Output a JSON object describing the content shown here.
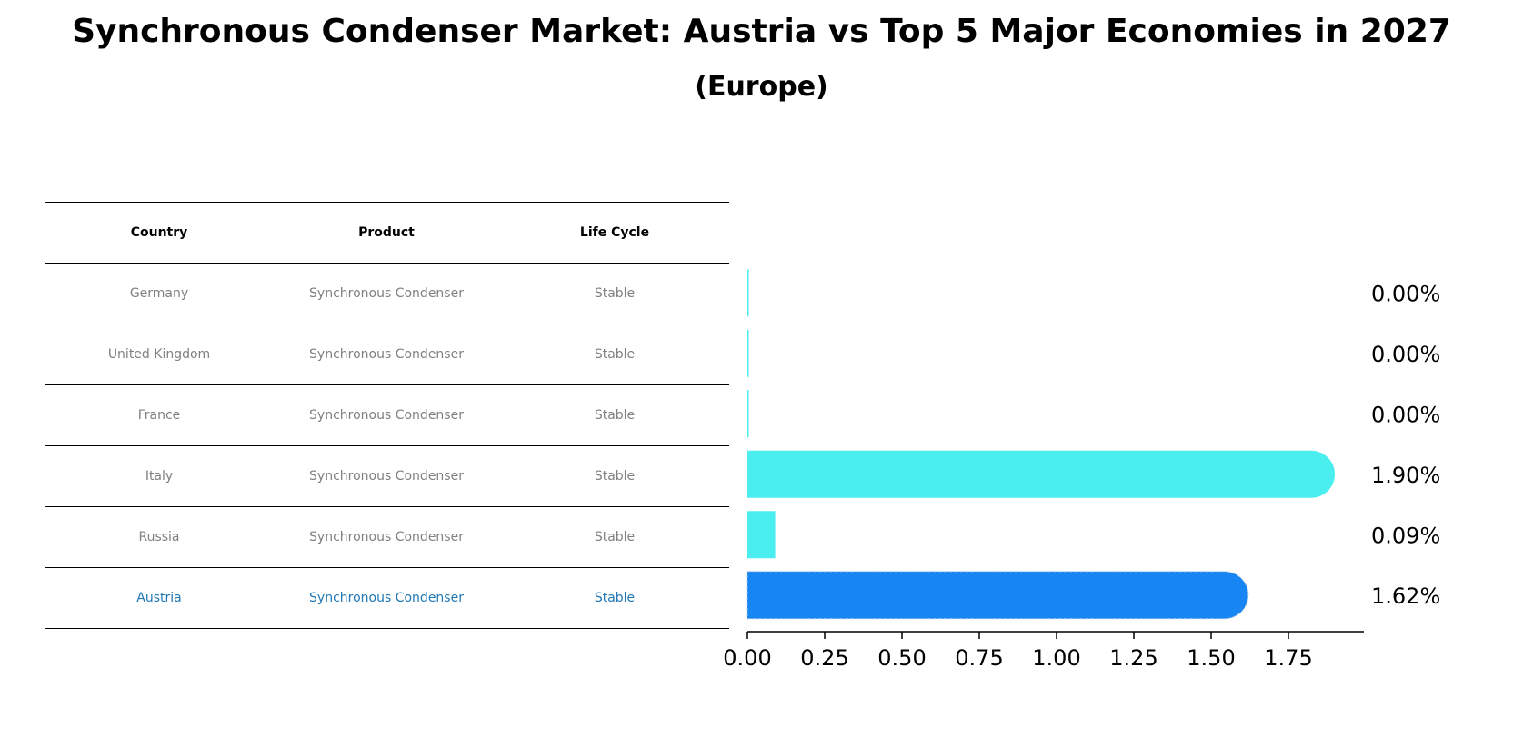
{
  "title": "Synchronous Condenser Market: Austria vs Top 5 Major Economies in 2027",
  "subtitle": "(Europe)",
  "table": {
    "headers": [
      "Country",
      "Product",
      "Life Cycle"
    ],
    "rows": [
      [
        "Germany",
        "Synchronous Condenser",
        "Stable"
      ],
      [
        "United Kingdom",
        "Synchronous Condenser",
        "Stable"
      ],
      [
        "France",
        "Synchronous Condenser",
        "Stable"
      ],
      [
        "Italy",
        "Synchronous Condenser",
        "Stable"
      ],
      [
        "Russia",
        "Synchronous Condenser",
        "Stable"
      ],
      [
        "Austria",
        "Synchronous Condenser",
        "Stable"
      ]
    ],
    "highlight_row": 5
  },
  "chart_data": {
    "type": "bar",
    "orientation": "horizontal",
    "categories": [
      "Germany",
      "United Kingdom",
      "France",
      "Italy",
      "Russia",
      "Austria"
    ],
    "values": [
      0.0,
      0.0,
      0.0,
      1.9,
      0.09,
      1.62
    ],
    "value_labels": [
      "0.00%",
      "0.00%",
      "0.00%",
      "1.90%",
      "0.09%",
      "1.62%"
    ],
    "xlim": [
      0,
      2.0
    ],
    "xticks": [
      0.0,
      0.25,
      0.5,
      0.75,
      1.0,
      1.25,
      1.5,
      1.75
    ],
    "xtick_labels": [
      "0.00",
      "0.25",
      "0.50",
      "0.75",
      "1.00",
      "1.25",
      "1.50",
      "1.75"
    ],
    "colors": {
      "default": "#4beeee",
      "highlight": "#1785f2",
      "highlight_row_text": "#1f77b4",
      "body_text": "#808080"
    },
    "grid": false,
    "legend": "none"
  }
}
